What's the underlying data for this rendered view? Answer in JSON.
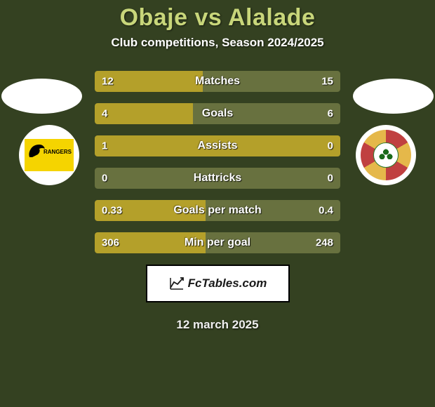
{
  "background_color": "#344121",
  "title": {
    "text": "Obaje vs Alalade",
    "color": "#c8d67a"
  },
  "subtitle": "Club competitions, Season 2024/2025",
  "date": "12 march 2025",
  "footer": {
    "brand": "FcTables.com"
  },
  "bar_colors": {
    "left_fill": "#b4a02a",
    "right_fill": "#68713f",
    "track": "#68713f"
  },
  "rows": [
    {
      "label": "Matches",
      "left": "12",
      "right": "15",
      "left_w": 44,
      "right_w": 56
    },
    {
      "label": "Goals",
      "left": "4",
      "right": "6",
      "left_w": 40,
      "right_w": 60
    },
    {
      "label": "Assists",
      "left": "1",
      "right": "0",
      "left_w": 100,
      "right_w": 0
    },
    {
      "label": "Hattricks",
      "left": "0",
      "right": "0",
      "left_w": 0,
      "right_w": 0
    },
    {
      "label": "Goals per match",
      "left": "0.33",
      "right": "0.4",
      "left_w": 45,
      "right_w": 55
    },
    {
      "label": "Min per goal",
      "left": "306",
      "right": "248",
      "left_w": 45,
      "right_w": 55
    }
  ],
  "badge_left": {
    "label": "RANGERS"
  }
}
